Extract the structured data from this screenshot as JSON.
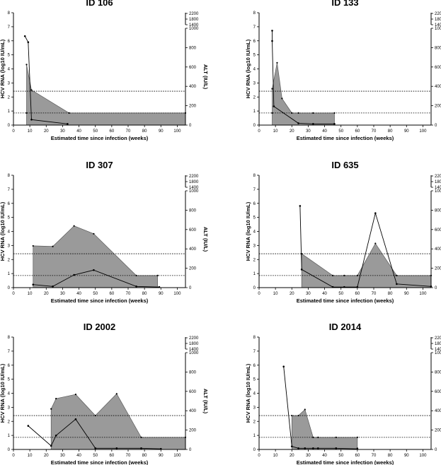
{
  "chart_data": [
    {
      "type": "area",
      "title": "ID 106",
      "xlabel": "Estimated time since infection (weeks)",
      "ylabel_left": "HCV RNA (log10 IU/mL)",
      "ylabel_right": "ALT (IU/L)",
      "xlim": [
        0,
        105
      ],
      "x_ticks": [
        0,
        10,
        20,
        30,
        40,
        50,
        60,
        70,
        80,
        90,
        100
      ],
      "ylim_left": [
        0,
        8
      ],
      "y_ticks_left": [
        0,
        1,
        2,
        3,
        4,
        5,
        6,
        7,
        8
      ],
      "ylim_right": [
        0,
        1000
      ],
      "y_ticks_right": [
        0,
        200,
        400,
        600,
        800,
        1000
      ],
      "right_break_ticks": [
        "1400",
        "1800",
        "2200"
      ],
      "reference_lines_log10": [
        2.8,
        1.0
      ],
      "hcv_rna": {
        "x": [
          8,
          8,
          11,
          34,
          105
        ],
        "y": [
          1,
          5,
          2.9,
          1,
          1
        ]
      },
      "alt": {
        "x": [
          7,
          9,
          11,
          33
        ],
        "y": [
          7.35,
          6.85,
          0.45,
          0.1
        ]
      }
    },
    {
      "type": "area",
      "title": "ID 133",
      "xlabel": "Estimated time since infection (weeks)",
      "ylabel_left": "HCV RNA (log10 IU/mL)",
      "ylabel_right": "ALT (IU/L)",
      "xlim": [
        0,
        105
      ],
      "x_ticks": [
        0,
        10,
        20,
        30,
        40,
        50,
        60,
        70,
        80,
        90,
        100
      ],
      "ylim_left": [
        0,
        8
      ],
      "y_ticks_left": [
        0,
        1,
        2,
        3,
        4,
        5,
        6,
        7,
        8
      ],
      "ylim_right": [
        0,
        1000
      ],
      "y_ticks_right": [
        0,
        200,
        400,
        600,
        800,
        1000
      ],
      "right_break_ticks": [
        "1400",
        "1800",
        "2200"
      ],
      "reference_lines_log10": [
        2.8,
        1.0
      ],
      "hcv_rna": {
        "x": [
          8,
          8,
          11,
          14,
          20,
          24,
          33,
          46,
          46
        ],
        "y": [
          1,
          3,
          5.15,
          2.2,
          1,
          1,
          1,
          1,
          0.1
        ]
      },
      "alt": {
        "x": [
          8,
          8,
          9,
          24,
          33,
          46
        ],
        "y": [
          7.8,
          6.95,
          1.55,
          0.15,
          0.1,
          0.1
        ]
      }
    },
    {
      "type": "area",
      "title": "ID 307",
      "xlabel": "Estimated time since infection (weeks)",
      "ylabel_left": "HCV RNA (log10 IU/mL)",
      "ylabel_right": "ALT (IU/L)",
      "xlim": [
        0,
        105
      ],
      "x_ticks": [
        0,
        10,
        20,
        30,
        40,
        50,
        60,
        70,
        80,
        90,
        100
      ],
      "ylim_left": [
        0,
        8
      ],
      "y_ticks_left": [
        0,
        1,
        2,
        3,
        4,
        5,
        6,
        7,
        8
      ],
      "ylim_right": [
        0,
        1000
      ],
      "y_ticks_right": [
        0,
        200,
        400,
        600,
        800,
        1000
      ],
      "right_break_ticks": [
        "1400",
        "1800",
        "2200"
      ],
      "reference_lines_log10": [
        2.8,
        1.0
      ],
      "hcv_rna": {
        "x": [
          12,
          24,
          37,
          49,
          75,
          88
        ],
        "y": [
          3.45,
          3.4,
          5.1,
          4.45,
          1,
          1
        ]
      },
      "alt": {
        "x": [
          12,
          24,
          37,
          49,
          75,
          89
        ],
        "y": [
          0.25,
          0.1,
          1.05,
          1.45,
          0.1,
          0.05
        ]
      }
    },
    {
      "type": "area",
      "title": "ID 635",
      "xlabel": "Estimated time since infection (weeks)",
      "ylabel_left": "HCV RNA (log10 IU/mL)",
      "ylabel_right": "ALT (IU/L)",
      "xlim": [
        0,
        105
      ],
      "x_ticks": [
        0,
        10,
        20,
        30,
        40,
        50,
        60,
        70,
        80,
        90,
        100
      ],
      "ylim_left": [
        0,
        8
      ],
      "y_ticks_left": [
        0,
        1,
        2,
        3,
        4,
        5,
        6,
        7,
        8
      ],
      "ylim_right": [
        0,
        1000
      ],
      "y_ticks_right": [
        0,
        200,
        400,
        600,
        800,
        1000
      ],
      "right_break_ticks": [
        "1400",
        "1800",
        "2200"
      ],
      "reference_lines_log10": [
        2.8,
        1.0
      ],
      "hcv_rna": {
        "x": [
          26,
          45,
          52,
          60,
          71,
          84,
          105
        ],
        "y": [
          2.8,
          1,
          1,
          1,
          3.65,
          1,
          1
        ]
      },
      "alt": {
        "x": [
          25,
          26,
          45,
          52,
          60,
          71,
          84,
          105
        ],
        "y": [
          6.75,
          1.5,
          0.05,
          0.05,
          0.05,
          6.15,
          0.3,
          0.1
        ]
      }
    },
    {
      "type": "area",
      "title": "ID 2002",
      "xlabel": "Estimated time since infection (weeks)",
      "ylabel_left": "HCV RNA (log10 IU/mL)",
      "ylabel_right": "ALT (IU/L)",
      "xlim": [
        0,
        105
      ],
      "x_ticks": [
        0,
        10,
        20,
        30,
        40,
        50,
        60,
        70,
        80,
        90,
        100
      ],
      "ylim_left": [
        0,
        8
      ],
      "y_ticks_left": [
        0,
        1,
        2,
        3,
        4,
        5,
        6,
        7,
        8
      ],
      "ylim_right": [
        0,
        1000
      ],
      "y_ticks_right": [
        0,
        200,
        400,
        600,
        800,
        1000
      ],
      "right_break_ticks": [
        "1400",
        "1800",
        "2200"
      ],
      "reference_lines_log10": [
        2.8,
        1.0
      ],
      "hcv_rna": {
        "x": [
          23,
          26,
          38,
          50,
          63,
          78,
          105
        ],
        "y": [
          3.35,
          4.2,
          4.55,
          2.8,
          4.6,
          1,
          1
        ]
      },
      "alt": {
        "x": [
          9,
          23,
          26,
          38,
          50,
          63,
          78,
          90
        ],
        "y": [
          1.95,
          0.3,
          1.15,
          2.5,
          0.1,
          0.1,
          0.1,
          0.05
        ]
      }
    },
    {
      "type": "area",
      "title": "ID 2014",
      "xlabel": "Estimated time since infection (weeks)",
      "ylabel_left": "HCV RNA (log10 IU/mL)",
      "ylabel_right": "ALT (IU/L)",
      "xlim": [
        0,
        105
      ],
      "x_ticks": [
        0,
        10,
        20,
        30,
        40,
        50,
        60,
        70,
        80,
        90,
        100
      ],
      "ylim_left": [
        0,
        8
      ],
      "y_ticks_left": [
        0,
        1,
        2,
        3,
        4,
        5,
        6,
        7,
        8
      ],
      "ylim_right": [
        0,
        1000
      ],
      "y_ticks_right": [
        0,
        200,
        400,
        600,
        800,
        1000
      ],
      "right_break_ticks": [
        "1400",
        "1800",
        "2200"
      ],
      "reference_lines_log10": [
        2.8,
        1.0
      ],
      "hcv_rna": {
        "x": [
          20,
          24,
          28,
          33,
          36,
          47,
          60,
          60
        ],
        "y": [
          2.8,
          2.8,
          3.3,
          1,
          1,
          1,
          1,
          0.1
        ]
      },
      "alt": {
        "x": [
          15,
          20,
          24,
          28,
          33,
          36,
          47,
          60
        ],
        "y": [
          6.85,
          0.25,
          0.1,
          0.1,
          0.1,
          0.1,
          0.1,
          0.05
        ]
      }
    }
  ]
}
